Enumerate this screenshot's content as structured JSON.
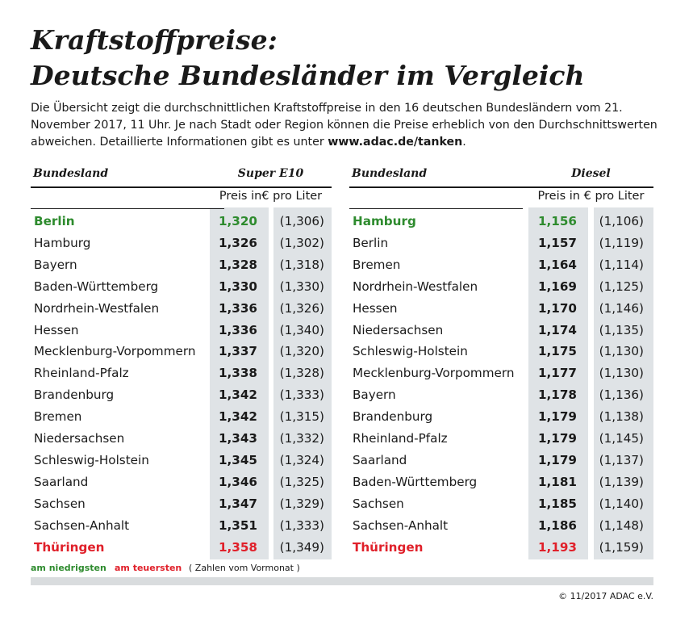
{
  "header": {
    "title_line1": "Kraftstoffpreise:",
    "title_line2": "Deutsche Bundesländer im Vergleich",
    "intro_text": "Die Übersicht zeigt die durchschnittlichen Kraftstoffpreise in den 16 deutschen Bundesländern vom 21. November 2017, 11 Uhr. Je nach Stadt oder Region können die Preise erheblich von den Durchschnittswerten abweichen. Detaillierte Informationen gibt es unter ",
    "intro_link": "www.adac.de/tanken",
    "intro_end": "."
  },
  "colors": {
    "low": "#2e8b2e",
    "high": "#e0202a",
    "shade": "#dfe3e6"
  },
  "super_e10": {
    "state_label": "Bundesland",
    "fuel_label": "Super E10",
    "unit_label": "Preis in€ pro Liter",
    "rows": [
      {
        "state": "Berlin",
        "price": "1,320",
        "prev": "(1,306)",
        "mark": "low"
      },
      {
        "state": "Hamburg",
        "price": "1,326",
        "prev": "(1,302)",
        "mark": ""
      },
      {
        "state": "Bayern",
        "price": "1,328",
        "prev": "(1,318)",
        "mark": ""
      },
      {
        "state": "Baden-Württemberg",
        "price": "1,330",
        "prev": "(1,330)",
        "mark": ""
      },
      {
        "state": "Nordrhein-Westfalen",
        "price": "1,336",
        "prev": "(1,326)",
        "mark": ""
      },
      {
        "state": "Hessen",
        "price": "1,336",
        "prev": "(1,340)",
        "mark": ""
      },
      {
        "state": "Mecklenburg-Vorpommern",
        "price": "1,337",
        "prev": "(1,320)",
        "mark": ""
      },
      {
        "state": "Rheinland-Pfalz",
        "price": "1,338",
        "prev": "(1,328)",
        "mark": ""
      },
      {
        "state": "Brandenburg",
        "price": "1,342",
        "prev": "(1,333)",
        "mark": ""
      },
      {
        "state": "Bremen",
        "price": "1,342",
        "prev": "(1,315)",
        "mark": ""
      },
      {
        "state": "Niedersachsen",
        "price": "1,343",
        "prev": "(1,332)",
        "mark": ""
      },
      {
        "state": "Schleswig-Holstein",
        "price": "1,345",
        "prev": "(1,324)",
        "mark": ""
      },
      {
        "state": "Saarland",
        "price": "1,346",
        "prev": "(1,325)",
        "mark": ""
      },
      {
        "state": "Sachsen",
        "price": "1,347",
        "prev": "(1,329)",
        "mark": ""
      },
      {
        "state": "Sachsen-Anhalt",
        "price": "1,351",
        "prev": "(1,333)",
        "mark": ""
      },
      {
        "state": "Thüringen",
        "price": "1,358",
        "prev": "(1,349)",
        "mark": "high"
      }
    ]
  },
  "diesel": {
    "state_label": "Bundesland",
    "fuel_label": "Diesel",
    "unit_label": "Preis in € pro Liter",
    "rows": [
      {
        "state": "Hamburg",
        "price": "1,156",
        "prev": "(1,106)",
        "mark": "low"
      },
      {
        "state": "Berlin",
        "price": "1,157",
        "prev": "(1,119)",
        "mark": ""
      },
      {
        "state": "Bremen",
        "price": "1,164",
        "prev": "(1,114)",
        "mark": ""
      },
      {
        "state": "Nordrhein-Westfalen",
        "price": "1,169",
        "prev": "(1,125)",
        "mark": ""
      },
      {
        "state": "Hessen",
        "price": "1,170",
        "prev": "(1,146)",
        "mark": ""
      },
      {
        "state": "Niedersachsen",
        "price": "1,174",
        "prev": "(1,135)",
        "mark": ""
      },
      {
        "state": "Schleswig-Holstein",
        "price": "1,175",
        "prev": "(1,130)",
        "mark": ""
      },
      {
        "state": "Mecklenburg-Vorpommern",
        "price": "1,177",
        "prev": "(1,130)",
        "mark": ""
      },
      {
        "state": "Bayern",
        "price": "1,178",
        "prev": "(1,136)",
        "mark": ""
      },
      {
        "state": "Brandenburg",
        "price": "1,179",
        "prev": "(1,138)",
        "mark": ""
      },
      {
        "state": "Rheinland-Pfalz",
        "price": "1,179",
        "prev": "(1,145)",
        "mark": ""
      },
      {
        "state": "Saarland",
        "price": "1,179",
        "prev": "(1,137)",
        "mark": ""
      },
      {
        "state": "Baden-Württemberg",
        "price": "1,181",
        "prev": "(1,139)",
        "mark": ""
      },
      {
        "state": "Sachsen",
        "price": "1,185",
        "prev": "(1,140)",
        "mark": ""
      },
      {
        "state": "Sachsen-Anhalt",
        "price": "1,186",
        "prev": "(1,148)",
        "mark": ""
      },
      {
        "state": "Thüringen",
        "price": "1,193",
        "prev": "(1,159)",
        "mark": "high"
      }
    ]
  },
  "legend": {
    "low": "am niedrigsten",
    "high": "am teuersten",
    "note": "( Zahlen vom Vormonat )"
  },
  "footer": {
    "copyright": "© 11/2017 ADAC e.V."
  }
}
